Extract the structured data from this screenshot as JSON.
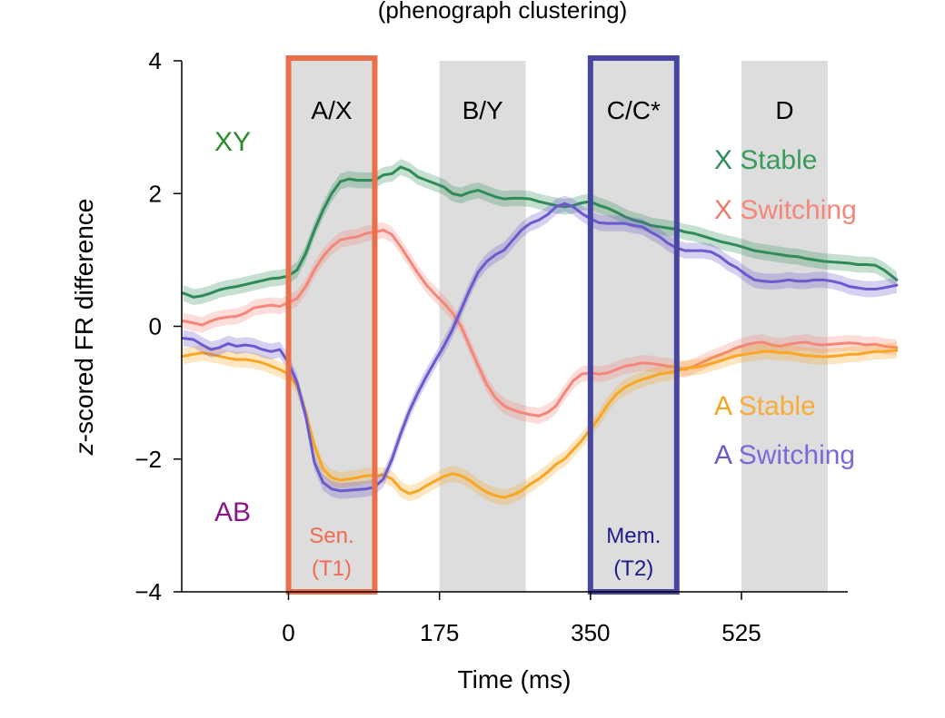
{
  "chart_data": {
    "type": "line",
    "title": "(phenograph clustering)",
    "xlabel": "Time (ms)",
    "ylabel": "z-scored FR difference",
    "ylabel_italic_prefix": "z",
    "ylabel_rest": "-scored FR difference",
    "xlim": [
      -122,
      705
    ],
    "ylim": [
      -4,
      4
    ],
    "x_ticks": [
      0,
      175,
      350,
      525
    ],
    "x_tick_labels": [
      "0",
      "175",
      "350",
      "525"
    ],
    "y_ticks": [
      -4,
      -2,
      0,
      2,
      4
    ],
    "y_tick_labels": [
      "−4",
      "−2",
      "0",
      "2",
      "4"
    ],
    "grid": false,
    "epochs": [
      {
        "label": "A/X",
        "start": 0,
        "end": 100,
        "color": "#dddddd"
      },
      {
        "label": "B/Y",
        "start": 175,
        "end": 275,
        "color": "#dddddd"
      },
      {
        "label": "C/C*",
        "start": 350,
        "end": 450,
        "color": "#dddddd"
      },
      {
        "label": "D",
        "start": 525,
        "end": 625,
        "color": "#dddddd"
      }
    ],
    "highlight_boxes": [
      {
        "start": 0,
        "end": 100,
        "color": "#e8704a",
        "label_line1": "Sen.",
        "label_line2": "(T1)",
        "label_color": "#f26a4f"
      },
      {
        "start": 350,
        "end": 450,
        "color": "#4646a0",
        "label_line1": "Mem.",
        "label_line2": "(T2)",
        "label_color": "#1c1c8c"
      }
    ],
    "corner_labels": [
      {
        "text": "XY",
        "color": "#2b8a2b"
      },
      {
        "text": "AB",
        "color": "#8a168a"
      }
    ],
    "legend": [
      {
        "prefix": "X",
        "text": "Stable",
        "prefix_color": "#2e8b57",
        "color": "#3a9a5a"
      },
      {
        "prefix": "X",
        "text": "Switching",
        "prefix_color": "#f07a6a",
        "color": "#f4867a"
      },
      {
        "prefix": "A",
        "text": "Stable",
        "prefix_color": "#f5a623",
        "color": "#f8ad3a"
      },
      {
        "prefix": "A",
        "text": "Switching",
        "prefix_color": "#6a5acd",
        "color": "#7a6ad8"
      }
    ],
    "x": [
      -122,
      -110,
      -100,
      -90,
      -80,
      -70,
      -60,
      -50,
      -40,
      -30,
      -20,
      -10,
      0,
      10,
      20,
      30,
      40,
      50,
      60,
      70,
      80,
      90,
      100,
      110,
      120,
      130,
      140,
      150,
      160,
      170,
      180,
      190,
      200,
      210,
      220,
      230,
      240,
      250,
      260,
      270,
      280,
      290,
      300,
      310,
      320,
      330,
      340,
      350,
      360,
      370,
      380,
      390,
      400,
      410,
      420,
      430,
      440,
      450,
      460,
      470,
      480,
      490,
      500,
      510,
      520,
      530,
      540,
      550,
      560,
      570,
      580,
      590,
      600,
      610,
      620,
      630,
      640,
      650,
      660,
      670,
      680,
      690,
      705
    ],
    "series": [
      {
        "name": "X Stable",
        "color": "#2e8b57",
        "values": [
          0.5,
          0.44,
          0.46,
          0.5,
          0.55,
          0.58,
          0.6,
          0.63,
          0.66,
          0.69,
          0.72,
          0.73,
          0.76,
          0.85,
          1.1,
          1.45,
          1.75,
          2.0,
          2.18,
          2.22,
          2.2,
          2.2,
          2.2,
          2.28,
          2.3,
          2.4,
          2.35,
          2.25,
          2.2,
          2.15,
          2.1,
          2.0,
          1.97,
          2.02,
          2.05,
          2.0,
          1.95,
          1.92,
          1.93,
          1.93,
          1.92,
          1.88,
          1.85,
          1.82,
          1.8,
          1.82,
          1.86,
          1.88,
          1.82,
          1.78,
          1.72,
          1.65,
          1.6,
          1.57,
          1.52,
          1.5,
          1.48,
          1.46,
          1.42,
          1.4,
          1.36,
          1.32,
          1.28,
          1.25,
          1.22,
          1.18,
          1.14,
          1.12,
          1.1,
          1.08,
          1.06,
          1.05,
          1.02,
          1.0,
          0.98,
          0.97,
          0.96,
          0.95,
          0.93,
          0.93,
          0.92,
          0.85,
          0.7
        ]
      },
      {
        "name": "X Switching",
        "color": "#f4867a",
        "values": [
          0.08,
          0.05,
          0.02,
          0.08,
          0.12,
          0.14,
          0.15,
          0.2,
          0.28,
          0.3,
          0.32,
          0.3,
          0.36,
          0.42,
          0.6,
          0.85,
          1.05,
          1.2,
          1.3,
          1.33,
          1.35,
          1.4,
          1.42,
          1.45,
          1.38,
          1.2,
          1.0,
          0.8,
          0.62,
          0.48,
          0.35,
          0.2,
          0.0,
          -0.3,
          -0.6,
          -0.88,
          -1.08,
          -1.2,
          -1.26,
          -1.3,
          -1.33,
          -1.35,
          -1.3,
          -1.2,
          -1.0,
          -0.82,
          -0.72,
          -0.7,
          -0.72,
          -0.7,
          -0.65,
          -0.6,
          -0.58,
          -0.55,
          -0.56,
          -0.58,
          -0.6,
          -0.62,
          -0.65,
          -0.6,
          -0.54,
          -0.48,
          -0.43,
          -0.38,
          -0.32,
          -0.28,
          -0.25,
          -0.24,
          -0.28,
          -0.3,
          -0.27,
          -0.25,
          -0.24,
          -0.27,
          -0.28,
          -0.27,
          -0.26,
          -0.25,
          -0.26,
          -0.28,
          -0.27,
          -0.3,
          -0.32
        ]
      },
      {
        "name": "A Stable",
        "color": "#f8a623",
        "values": [
          -0.45,
          -0.42,
          -0.4,
          -0.42,
          -0.45,
          -0.48,
          -0.5,
          -0.5,
          -0.52,
          -0.55,
          -0.6,
          -0.65,
          -0.72,
          -0.9,
          -1.3,
          -1.8,
          -2.15,
          -2.28,
          -2.32,
          -2.3,
          -2.28,
          -2.25,
          -2.25,
          -2.24,
          -2.3,
          -2.45,
          -2.52,
          -2.48,
          -2.4,
          -2.33,
          -2.26,
          -2.22,
          -2.25,
          -2.32,
          -2.42,
          -2.5,
          -2.55,
          -2.58,
          -2.54,
          -2.48,
          -2.38,
          -2.3,
          -2.2,
          -2.08,
          -2.0,
          -1.86,
          -1.72,
          -1.55,
          -1.38,
          -1.18,
          -1.02,
          -0.92,
          -0.85,
          -0.8,
          -0.76,
          -0.72,
          -0.7,
          -0.67,
          -0.63,
          -0.62,
          -0.6,
          -0.56,
          -0.52,
          -0.48,
          -0.44,
          -0.42,
          -0.4,
          -0.38,
          -0.38,
          -0.4,
          -0.4,
          -0.42,
          -0.44,
          -0.45,
          -0.46,
          -0.45,
          -0.44,
          -0.42,
          -0.42,
          -0.4,
          -0.38,
          -0.38,
          -0.36
        ]
      },
      {
        "name": "A Switching",
        "color": "#6a5acd",
        "values": [
          -0.18,
          -0.2,
          -0.28,
          -0.35,
          -0.32,
          -0.26,
          -0.3,
          -0.28,
          -0.3,
          -0.35,
          -0.38,
          -0.35,
          -0.55,
          -0.85,
          -1.35,
          -2.05,
          -2.35,
          -2.45,
          -2.48,
          -2.47,
          -2.46,
          -2.45,
          -2.42,
          -2.3,
          -2.0,
          -1.62,
          -1.28,
          -1.0,
          -0.75,
          -0.52,
          -0.3,
          -0.05,
          0.25,
          0.55,
          0.82,
          0.98,
          1.08,
          1.15,
          1.3,
          1.45,
          1.55,
          1.6,
          1.68,
          1.8,
          1.85,
          1.8,
          1.7,
          1.62,
          1.56,
          1.55,
          1.55,
          1.55,
          1.52,
          1.5,
          1.42,
          1.35,
          1.25,
          1.18,
          1.14,
          1.14,
          1.14,
          1.12,
          1.05,
          0.95,
          0.88,
          0.78,
          0.7,
          0.68,
          0.67,
          0.68,
          0.7,
          0.68,
          0.68,
          0.7,
          0.7,
          0.68,
          0.65,
          0.6,
          0.58,
          0.56,
          0.56,
          0.58,
          0.62
        ]
      }
    ]
  }
}
